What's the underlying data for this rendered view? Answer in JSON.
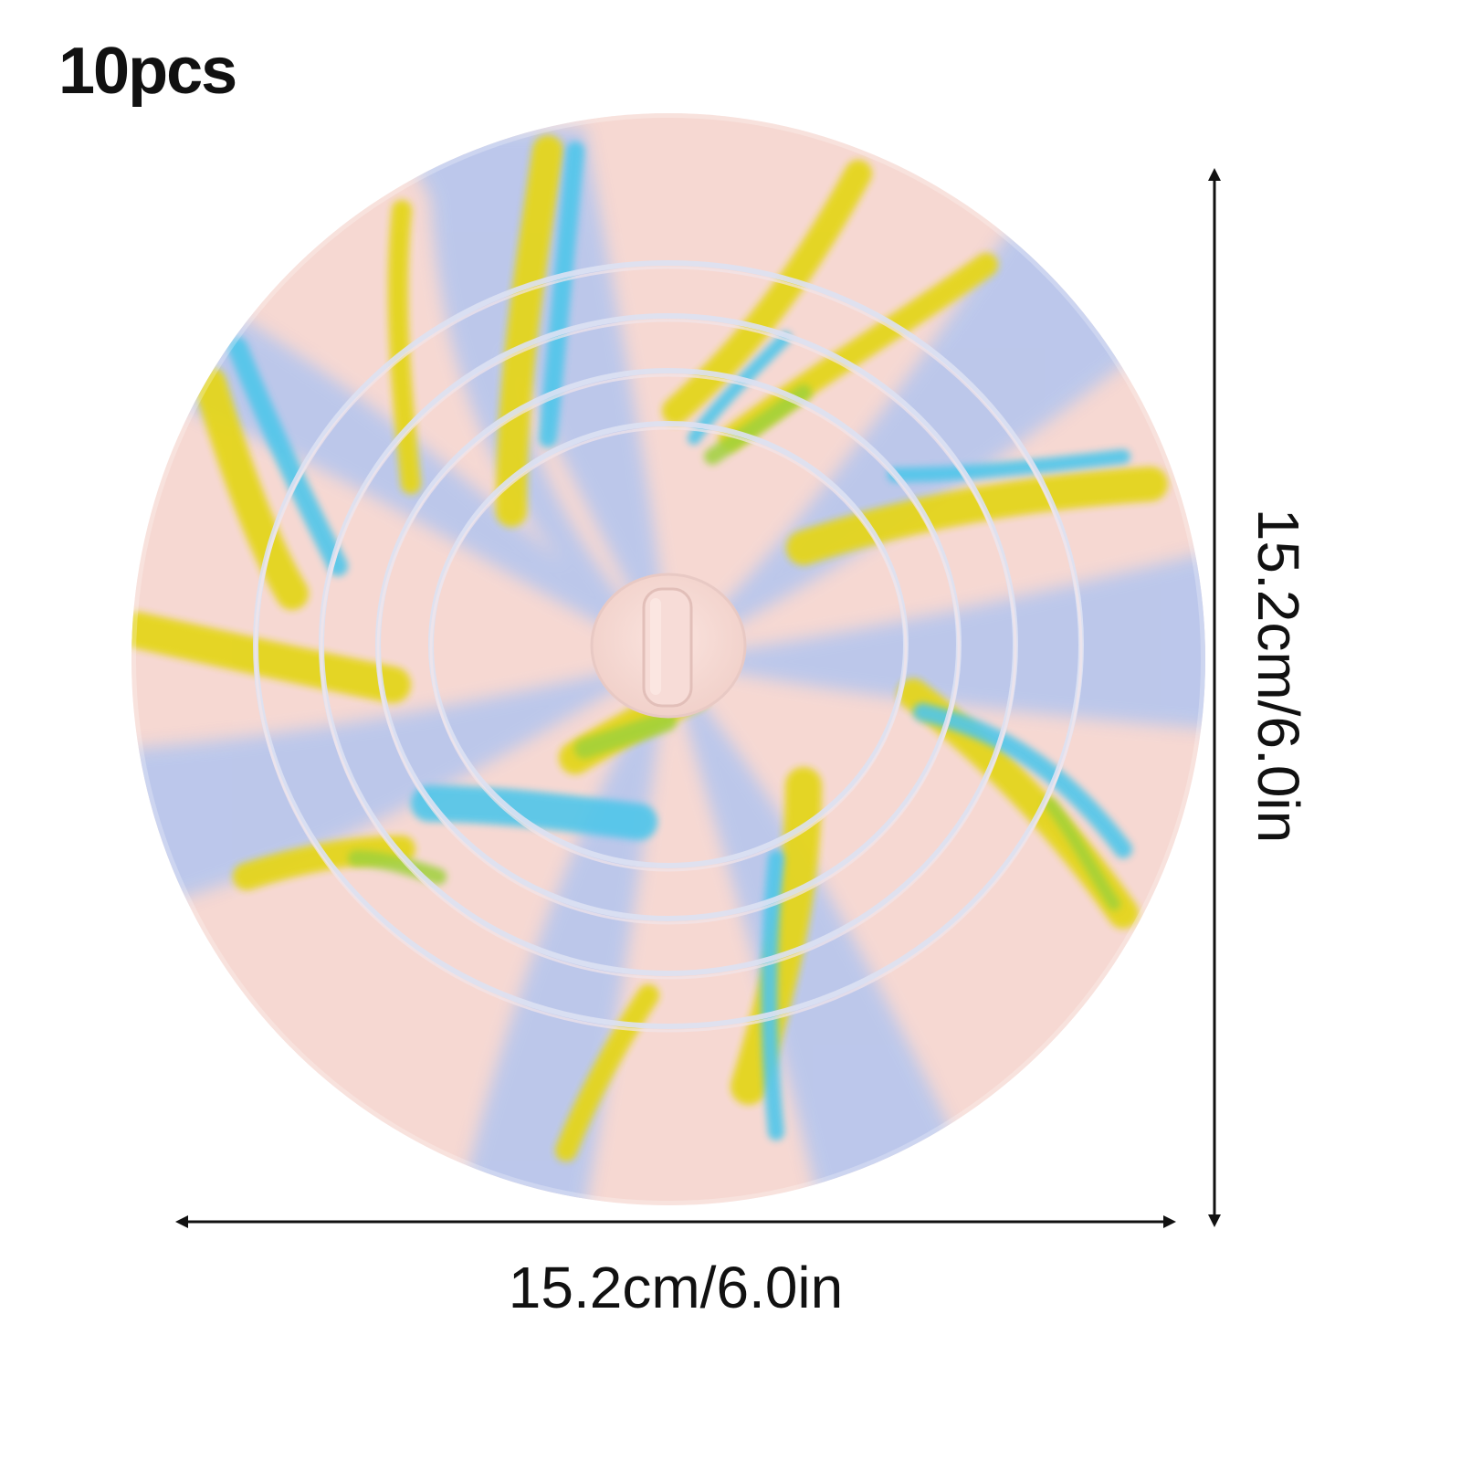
{
  "badge": {
    "quantity_text": "10pcs"
  },
  "product": {
    "icon": "silicone-drain-stopper",
    "colors": {
      "pink": "#f6d8d2",
      "lavender": "#b9c7ec",
      "yellow": "#e4d51e",
      "cyan": "#4fc6ea",
      "green": "#9fd13a",
      "ring": "#dde2f3"
    }
  },
  "dimensions": {
    "width_label": "15.2cm/6.0in",
    "height_label": "15.2cm/6.0in"
  }
}
